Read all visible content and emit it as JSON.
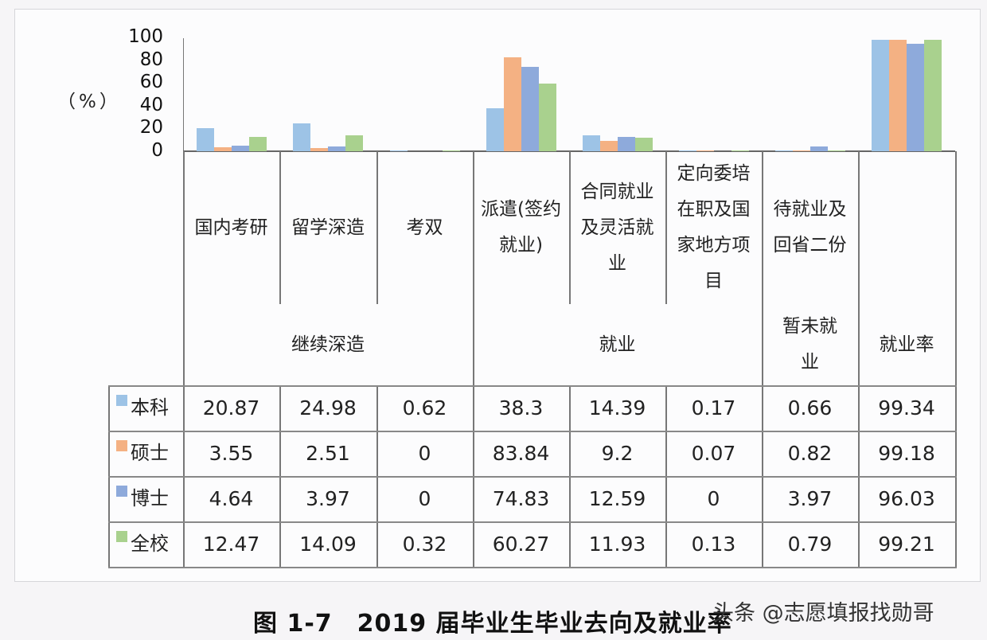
{
  "caption": "图 1-7　2019 届毕业生毕业去向及就业率",
  "watermark": "头条 @志愿填报找勋哥",
  "y_axis": {
    "unit": "（%）",
    "ticks": [
      "100",
      "80",
      "60",
      "40",
      "20",
      "0"
    ]
  },
  "categories": [
    "国内考研",
    "留学深造",
    "考双",
    "派遣(签约就业)",
    "合同就业及灵活就业",
    "定向委培在职及国家地方项目",
    "待就业及回省二份",
    "就业率"
  ],
  "category_lines": [
    [
      "国内考研"
    ],
    [
      "留学深造"
    ],
    [
      "考双"
    ],
    [
      "派遣(签约",
      "就业)"
    ],
    [
      "合同就业",
      "及灵活就",
      "业"
    ],
    [
      "定向委培",
      "在职及国",
      "家地方项",
      "目"
    ],
    [
      "待就业及",
      "回省二份"
    ],
    [
      ""
    ]
  ],
  "groups": [
    {
      "label": "继续深造",
      "span": 3
    },
    {
      "label": "就业",
      "span": 3
    },
    {
      "label": "暂未就业",
      "lines": [
        "暂未就",
        "业"
      ],
      "span": 1
    },
    {
      "label": "就业率",
      "span": 1
    }
  ],
  "series": [
    {
      "name": "本科",
      "color": "#9dc3e6",
      "values": [
        "20.87",
        "24.98",
        "0.62",
        "38.3",
        "14.39",
        "0.17",
        "0.66",
        "99.34"
      ]
    },
    {
      "name": "硕士",
      "color": "#f4b183",
      "values": [
        "3.55",
        "2.51",
        "0",
        "83.84",
        "9.2",
        "0.07",
        "0.82",
        "99.18"
      ]
    },
    {
      "name": "博士",
      "color": "#8eaadb",
      "values": [
        "4.64",
        "3.97",
        "0",
        "74.83",
        "12.59",
        "0",
        "3.97",
        "96.03"
      ]
    },
    {
      "name": "全校",
      "color": "#a9d18e",
      "values": [
        "12.47",
        "14.09",
        "0.32",
        "60.27",
        "11.93",
        "0.13",
        "0.79",
        "99.21"
      ]
    }
  ],
  "chart_data": {
    "type": "bar",
    "title": "图 1-7 2019 届毕业生毕业去向及就业率",
    "xlabel": "",
    "ylabel": "(%)",
    "ylim": [
      0,
      100
    ],
    "grid": false,
    "legend_position": "data-table",
    "categories": [
      "国内考研",
      "留学深造",
      "考双",
      "派遣(签约就业)",
      "合同就业及灵活就业",
      "定向委培在职及国家地方项目",
      "待就业及回省二份",
      "就业率"
    ],
    "category_groups": [
      {
        "label": "继续深造",
        "categories": [
          "国内考研",
          "留学深造",
          "考双"
        ]
      },
      {
        "label": "就业",
        "categories": [
          "派遣(签约就业)",
          "合同就业及灵活就业",
          "定向委培在职及国家地方项目"
        ]
      },
      {
        "label": "暂未就业",
        "categories": [
          "待就业及回省二份"
        ]
      },
      {
        "label": "就业率",
        "categories": [
          "就业率"
        ]
      }
    ],
    "series": [
      {
        "name": "本科",
        "values": [
          20.87,
          24.98,
          0.62,
          38.3,
          14.39,
          0.17,
          0.66,
          99.34
        ]
      },
      {
        "name": "硕士",
        "values": [
          3.55,
          2.51,
          0,
          83.84,
          9.2,
          0.07,
          0.82,
          99.18
        ]
      },
      {
        "name": "博士",
        "values": [
          4.64,
          3.97,
          0,
          74.83,
          12.59,
          0,
          3.97,
          96.03
        ]
      },
      {
        "name": "全校",
        "values": [
          12.47,
          14.09,
          0.32,
          60.27,
          11.93,
          0.13,
          0.79,
          99.21
        ]
      }
    ]
  }
}
